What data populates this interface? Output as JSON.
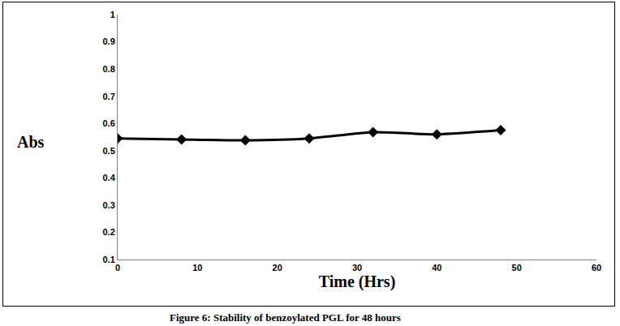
{
  "chart_data": {
    "type": "line",
    "title": "Figure 6: Stability of benzoylated PGL for 48 hours",
    "x_label": "Time (Hrs)",
    "y_label": "Abs",
    "x": [
      0,
      8,
      16,
      24,
      32,
      40,
      48
    ],
    "values": [
      0.545,
      0.541,
      0.538,
      0.545,
      0.568,
      0.56,
      0.575
    ],
    "color": "#000000",
    "marker": "diamond",
    "line_style": "solid",
    "xlim": [
      0,
      60
    ],
    "xticks": [
      0,
      10,
      20,
      30,
      40,
      50,
      60
    ],
    "ylim": [
      0.1,
      1
    ],
    "yticks": [
      0.1,
      0.2,
      0.3,
      0.4,
      0.5,
      0.6,
      0.7,
      0.8,
      0.9,
      1
    ],
    "grid": false
  }
}
